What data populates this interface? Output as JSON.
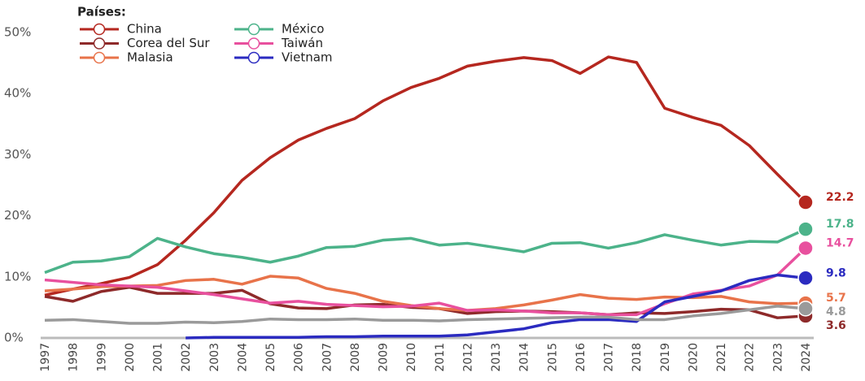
{
  "chart_data": {
    "type": "line",
    "legend_title": "Países:",
    "legend": "top-left",
    "categories": [
      "1997",
      "1998",
      "1999",
      "2000",
      "2001",
      "2002",
      "2003",
      "2004",
      "2005",
      "2006",
      "2007",
      "2008",
      "2009",
      "2010",
      "2011",
      "2012",
      "2013",
      "2014",
      "2015",
      "2016",
      "2017",
      "2018",
      "2019",
      "2020",
      "2021",
      "2022",
      "2023",
      "2024"
    ],
    "ylim": [
      0,
      50
    ],
    "yticks": [
      {
        "value": 0,
        "label": "0%"
      },
      {
        "value": 10,
        "label": "10%"
      },
      {
        "value": 20,
        "label": "20%"
      },
      {
        "value": 30,
        "label": "30%"
      },
      {
        "value": 40,
        "label": "40%"
      },
      {
        "value": 50,
        "label": "50%"
      }
    ],
    "series": [
      {
        "name": "China",
        "color": "#b5271f",
        "values": [
          7.0,
          8.0,
          8.9,
          9.9,
          12.0,
          16.0,
          20.5,
          25.8,
          29.5,
          32.4,
          34.3,
          35.9,
          38.8,
          41.0,
          42.5,
          44.5,
          45.3,
          45.9,
          45.4,
          43.3,
          46.0,
          45.1,
          37.6,
          36.1,
          34.8,
          31.5,
          26.8,
          22.2
        ]
      },
      {
        "name": "Corea del Sur",
        "color": "#8e2a2a",
        "values": [
          6.8,
          6.0,
          7.6,
          8.3,
          7.3,
          7.3,
          7.3,
          7.8,
          5.6,
          4.9,
          4.8,
          5.4,
          5.5,
          5.0,
          4.8,
          4.0,
          4.3,
          4.4,
          4.3,
          4.1,
          3.8,
          4.1,
          4.0,
          4.3,
          4.7,
          4.6,
          3.3,
          3.6
        ]
      },
      {
        "name": "Malasia",
        "color": "#e8734a",
        "values": [
          7.7,
          8.0,
          8.4,
          8.5,
          8.6,
          9.4,
          9.6,
          8.8,
          10.1,
          9.8,
          8.1,
          7.3,
          6.0,
          5.3,
          4.8,
          4.5,
          4.8,
          5.4,
          6.2,
          7.1,
          6.5,
          6.3,
          6.7,
          6.6,
          6.8,
          5.9,
          5.6,
          5.7
        ]
      },
      {
        "name": "México",
        "color": "#4cb38a",
        "values": [
          10.7,
          12.4,
          12.6,
          13.3,
          16.3,
          14.9,
          13.8,
          13.2,
          12.4,
          13.4,
          14.8,
          15.0,
          16.0,
          16.3,
          15.2,
          15.5,
          14.8,
          14.1,
          15.5,
          15.6,
          14.7,
          15.6,
          16.9,
          16.0,
          15.2,
          15.8,
          15.7,
          17.8
        ]
      },
      {
        "name": "Taiwán",
        "color": "#e8509e",
        "values": [
          9.5,
          9.1,
          8.7,
          8.5,
          8.3,
          7.7,
          7.1,
          6.4,
          5.7,
          6.0,
          5.5,
          5.3,
          5.1,
          5.2,
          5.7,
          4.5,
          4.6,
          4.4,
          4.1,
          4.1,
          3.8,
          3.8,
          5.6,
          7.2,
          7.8,
          8.5,
          10.3,
          14.7
        ]
      },
      {
        "name": "Vietnam",
        "color": "#2b2bc0",
        "values": [
          null,
          null,
          null,
          null,
          null,
          0.0,
          0.1,
          0.1,
          0.1,
          0.1,
          0.2,
          0.2,
          0.3,
          0.3,
          0.3,
          0.5,
          1.0,
          1.5,
          2.5,
          3.0,
          3.0,
          2.7,
          5.9,
          6.8,
          7.7,
          9.4,
          10.3,
          9.8
        ]
      },
      {
        "color": "#9a9a9a",
        "values": [
          2.9,
          3.0,
          2.7,
          2.4,
          2.4,
          2.6,
          2.5,
          2.7,
          3.1,
          3.0,
          3.0,
          3.1,
          2.9,
          2.9,
          2.8,
          3.0,
          3.1,
          3.2,
          3.3,
          3.4,
          3.4,
          3.0,
          3.0,
          3.6,
          4.0,
          4.6,
          5.2,
          4.8
        ]
      }
    ]
  }
}
